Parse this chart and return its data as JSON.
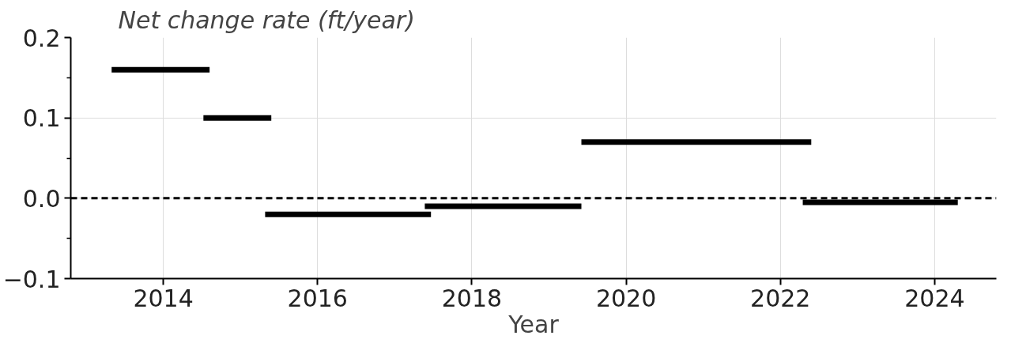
{
  "chart_data": {
    "type": "line",
    "title": "Net change rate (ft/year)",
    "xlabel": "Year",
    "series": [
      {
        "color": "#000000",
        "x": [
          2013.33,
          2014.6
        ],
        "values": [
          0.16,
          0.16
        ]
      },
      {
        "color": "#000000",
        "x": [
          2014.52,
          2015.4
        ],
        "values": [
          0.1,
          0.1
        ]
      },
      {
        "color": "#000000",
        "x": [
          2015.32,
          2017.47
        ],
        "values": [
          -0.02,
          -0.02
        ]
      },
      {
        "color": "#000000",
        "x": [
          2017.39,
          2019.42
        ],
        "values": [
          -0.01,
          -0.01
        ]
      },
      {
        "color": "#000000",
        "x": [
          2019.42,
          2022.4
        ],
        "values": [
          0.07,
          0.07
        ]
      },
      {
        "color": "#000000",
        "x": [
          2022.29,
          2024.3
        ],
        "values": [
          -0.005,
          -0.005
        ]
      }
    ],
    "xlim": [
      2012.8,
      2024.8
    ],
    "xticks": [
      2014,
      2016,
      2018,
      2020,
      2022,
      2024
    ],
    "ylim": [
      -0.1,
      0.2
    ],
    "yticks": [
      {
        "value": -0.1,
        "label": "−0.1"
      },
      {
        "value": -0.05,
        "label": null
      },
      "0.0",
      {
        "value": 0.05,
        "label": null
      },
      0.1,
      {
        "value": 0.15,
        "label": null
      },
      0.2
    ],
    "ref_lines": [
      {
        "axis": "y",
        "value": 0,
        "color": "#000000",
        "line_style": "dashed"
      }
    ],
    "grid": true,
    "marker": "none",
    "line_style": "solid"
  }
}
